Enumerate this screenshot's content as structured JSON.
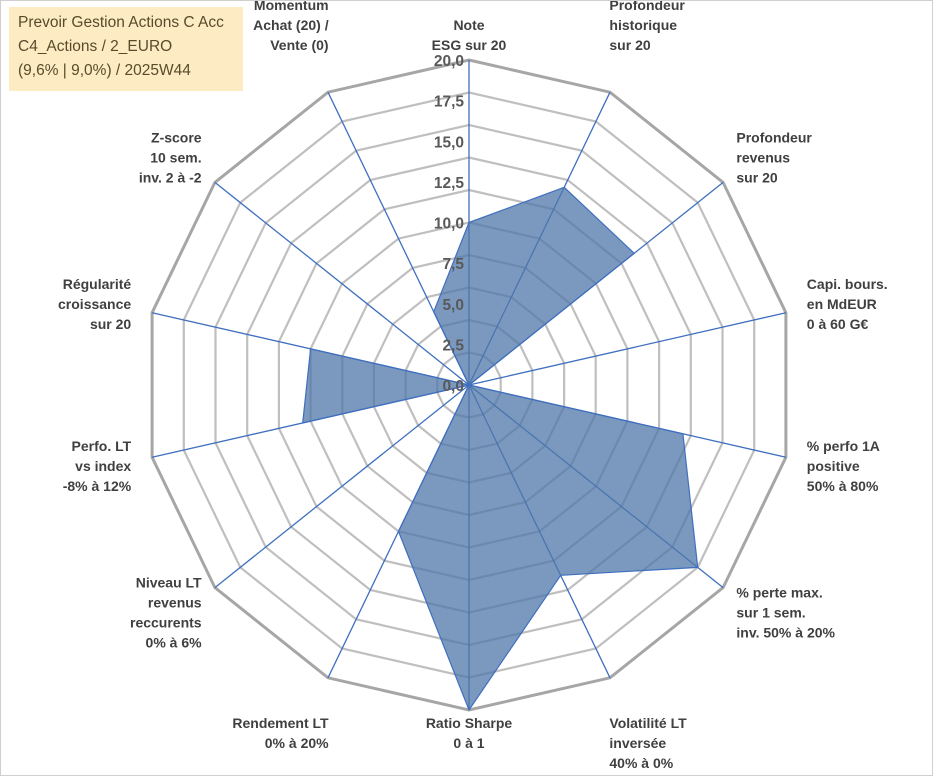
{
  "info_box": {
    "line1": "Prevoir Gestion Actions C Acc",
    "line2": "C4_Actions / 2_EURO",
    "line3": "(9,6% | 9,0%) / 2025W44"
  },
  "chart_data": {
    "type": "radar",
    "rlim": [
      0,
      20
    ],
    "ticks": [
      "0,0",
      "2,5",
      "5,0",
      "7,5",
      "10,0",
      "12,5",
      "15,0",
      "17,5",
      "20,0"
    ],
    "tick_values": [
      0,
      2.5,
      5,
      7.5,
      10,
      12.5,
      15,
      17.5,
      20
    ],
    "grid_step": 2,
    "axes": [
      {
        "label": [
          "Note",
          "ESG sur 20"
        ]
      },
      {
        "label": [
          "Profondeur",
          "historique",
          "sur 20"
        ]
      },
      {
        "label": [
          "Profondeur",
          "revenus",
          "sur 20"
        ]
      },
      {
        "label": [
          "Capi. bours.",
          "en MdEUR",
          "0 à 60 G€"
        ]
      },
      {
        "label": [
          "% perfo 1A",
          "positive",
          "50% à 80%"
        ]
      },
      {
        "label": [
          "% perte max.",
          "sur 1 sem.",
          "inv. 50% à 20%"
        ]
      },
      {
        "label": [
          "Volatilité LT",
          "inversée",
          "40% à 0%"
        ]
      },
      {
        "label": [
          "Ratio Sharpe",
          "0 à 1"
        ]
      },
      {
        "label": [
          "Rendement LT",
          "0% à 20%"
        ]
      },
      {
        "label": [
          "Niveau LT",
          "revenus",
          "reccurents",
          "0% à 6%"
        ]
      },
      {
        "label": [
          "Perfo. LT",
          "vs index",
          "-8% à 12%"
        ]
      },
      {
        "label": [
          "Régularité",
          "croissance",
          "sur 20"
        ]
      },
      {
        "label": [
          "Z-score",
          "10 sem.",
          "inv. 2 à -2"
        ]
      },
      {
        "label": [
          "Momentum",
          "Achat (20) /",
          "Vente (0)"
        ]
      }
    ],
    "values": [
      10,
      13.5,
      13,
      0,
      13.5,
      18,
      13,
      20,
      10,
      0,
      10.5,
      10,
      0,
      5
    ],
    "grid": true,
    "fill_color": "#4f77aa",
    "fill_opacity": 0.75,
    "spoke_color": "#3f6fbf",
    "grid_color": "#bfbfbf",
    "outer_color": "#a6a6a6"
  }
}
